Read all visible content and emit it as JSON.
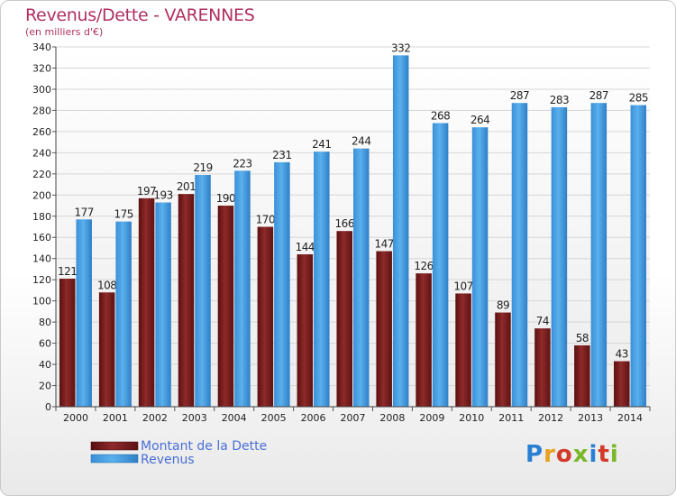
{
  "chart_data": {
    "type": "bar",
    "title": "Revenus/Dette - VARENNES",
    "subtitle": "(en milliers d'€)",
    "categories": [
      "2000",
      "2001",
      "2002",
      "2003",
      "2004",
      "2005",
      "2006",
      "2007",
      "2008",
      "2009",
      "2010",
      "2011",
      "2012",
      "2013",
      "2014"
    ],
    "series": [
      {
        "name": "Montant de la Dette",
        "color": "#7a1c1c",
        "values": [
          121,
          108,
          197,
          201,
          190,
          170,
          144,
          166,
          147,
          126,
          107,
          89,
          74,
          58,
          43
        ]
      },
      {
        "name": "Revenus",
        "color": "#3d95dc",
        "values": [
          177,
          175,
          193,
          219,
          223,
          231,
          241,
          244,
          332,
          268,
          264,
          287,
          283,
          287,
          285
        ]
      }
    ],
    "ylim": [
      0,
      340
    ],
    "ytick_step": 20,
    "grid": true,
    "legend_position": "bottom-left"
  },
  "logo": {
    "text": "Proxiti"
  }
}
